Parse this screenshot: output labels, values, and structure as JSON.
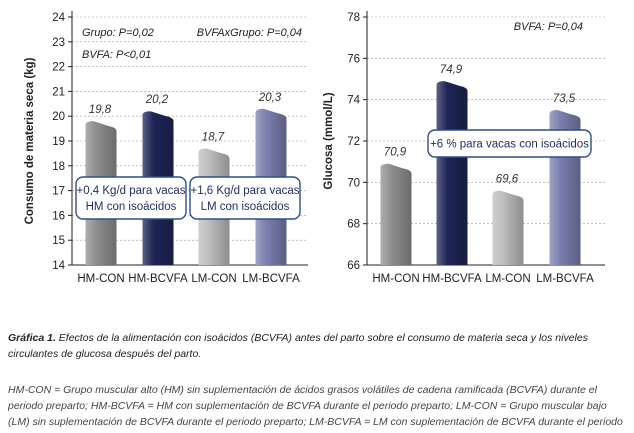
{
  "chart_data": [
    {
      "type": "bar",
      "categories": [
        "HM-CON",
        "HM-BCVFA",
        "LM-CON",
        "LM-BCVFA"
      ],
      "values": [
        19.8,
        20.2,
        18.7,
        20.3
      ],
      "value_labels": [
        "19,8",
        "20,2",
        "18,7",
        "20,3"
      ],
      "ylabel": "Consumo de materia seca (kg)",
      "ylim": [
        14,
        24
      ],
      "yticks": [
        "14",
        "15",
        "16",
        "17",
        "18",
        "19",
        "20",
        "21",
        "22",
        "23",
        "24"
      ],
      "grid": true,
      "annotations": [
        "Grupo: P=0,02",
        "BVFAxGrupo: P=0,04",
        "BVFA: P<0,01"
      ],
      "callouts": [
        {
          "line1": "+0,4 Kg/d para vacas",
          "line2": "HM con isoácidos"
        },
        {
          "line1": "+1,6 Kg/d para vacas",
          "line2": "LM con isoácidos"
        }
      ]
    },
    {
      "type": "bar",
      "categories": [
        "HM-CON",
        "HM-BCVFA",
        "LM-CON",
        "LM-BCVFA"
      ],
      "values": [
        70.9,
        74.9,
        69.6,
        73.5
      ],
      "value_labels": [
        "70,9",
        "74,9",
        "69,6",
        "73,5"
      ],
      "ylabel": "Glucosa (mmol/L)",
      "ylim": [
        66,
        78
      ],
      "yticks": [
        "66",
        "68",
        "70",
        "72",
        "74",
        "76",
        "78"
      ],
      "grid": true,
      "annotations": [
        "BVFA: P=0,04"
      ],
      "callouts": [
        {
          "line1": "+6 % para vacas con isoácidos"
        }
      ]
    }
  ],
  "colors": {
    "hm_con": "#8e8e8e",
    "hm_bcvfa": "#1e2556",
    "lm_con": "#bcbcbc",
    "lm_bcvfa": "#7a7fad",
    "callout_border": "#2d4e8a"
  },
  "caption": {
    "label": "Gráfica 1.",
    "text": "Efectos de la alimentación con isoácidos (BCVFA) antes del parto sobre el consumo de materia seca y los niveles circulantes de glucosa después del parto.",
    "notes": "HM-CON = Grupo muscular alto (HM) sin suplementación de ácidos grasos volátiles de cadena ramificada (BCVFA) durante el periodo preparto; HM-BCVFA = HM con suplementación de BCVFA durante el periodo preparto; LM-CON = Grupo muscular bajo (LM) sin suplementación de BCVFA durante el periodo preparto; LM-BCVFA = LM con suplementación de BCVFA durante el periodo preparto."
  }
}
